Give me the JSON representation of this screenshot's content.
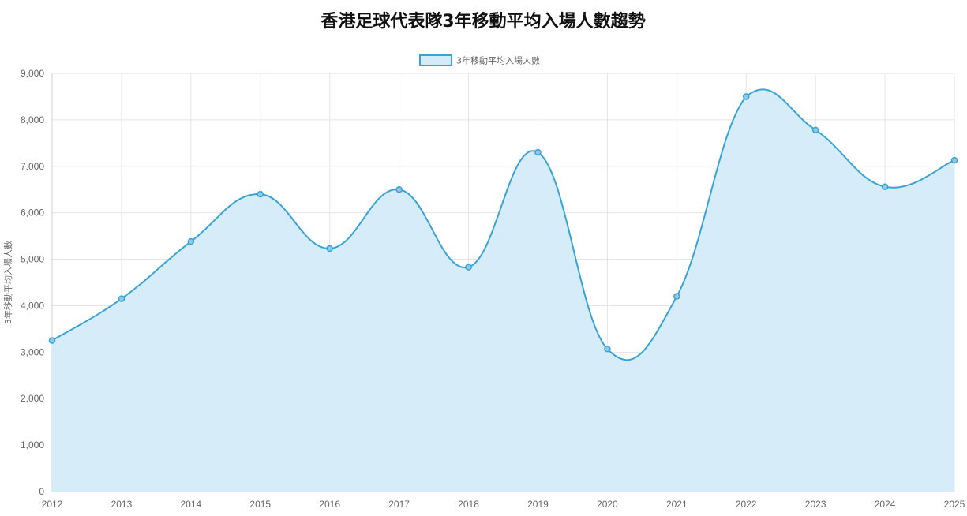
{
  "chart_data": {
    "type": "area",
    "title": "香港足球代表隊3年移動平均入場人數趨勢",
    "ylabel": "3年移動平均入場人數",
    "xlabel": "",
    "x": [
      "2012",
      "2013",
      "2014",
      "2015",
      "2016",
      "2017",
      "2018",
      "2019",
      "2020",
      "2021",
      "2022",
      "2023",
      "2024",
      "2025"
    ],
    "series": [
      {
        "name": "3年移動平均入場人數",
        "values": [
          3250,
          4150,
          5380,
          6400,
          5230,
          6500,
          4830,
          7300,
          3070,
          4200,
          8500,
          7780,
          6560,
          7130
        ],
        "line_color": "#3aa3d6",
        "fill_color": "#d4ebf9"
      }
    ],
    "ylim": [
      0,
      9000
    ],
    "yticks": [
      0,
      1000,
      2000,
      3000,
      4000,
      5000,
      6000,
      7000,
      8000,
      9000
    ],
    "ytick_labels": [
      "0",
      "1,000",
      "2,000",
      "3,000",
      "4,000",
      "5,000",
      "6,000",
      "7,000",
      "8,000",
      "9,000"
    ],
    "grid": true,
    "legend_position": "top-center"
  }
}
